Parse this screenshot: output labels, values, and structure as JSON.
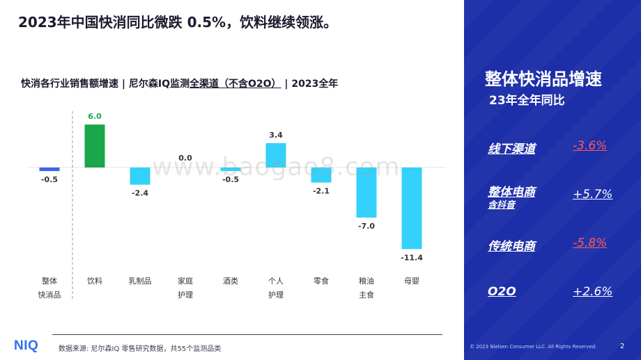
{
  "headline": "2023年中国快消同比微跌 0.5%，饮料继续领涨。",
  "subtitle": {
    "part1": "快消各行业销售额增速 | 尼尔森IQ监测",
    "part2": "全渠道（不含O2O）",
    "part3": " | 2023全年"
  },
  "watermark": "www.baogao8.com",
  "chart_data": {
    "type": "bar",
    "categories": [
      "整体\n快消品",
      "饮料",
      "乳制品",
      "家庭\n护理",
      "酒类",
      "个人\n护理",
      "零食",
      "粮油\n主食",
      "母婴"
    ],
    "values": [
      -0.5,
      6.0,
      -2.4,
      0.0,
      -0.5,
      3.4,
      -2.1,
      -7.0,
      -11.4
    ],
    "value_labels": [
      "-0.5",
      "6.0",
      "-2.4",
      "0.0",
      "-0.5",
      "3.4",
      "-2.1",
      "-7.0",
      "-11.4"
    ],
    "colors": [
      "#3d63e8",
      "#1aa64b",
      "#33d1fb",
      "#33d1fb",
      "#33d1fb",
      "#33d1fb",
      "#33d1fb",
      "#33d1fb",
      "#33d1fb"
    ],
    "highlight_label_color": "#1aa64b",
    "label_color": "#333333",
    "title": "",
    "xlabel": "",
    "ylabel": "",
    "ylim": [
      -12,
      7
    ],
    "grid": false
  },
  "footer": {
    "logo": "NIQ",
    "source": "数据来源: 尼尔森IQ 零售研究数据，共55个监测品类"
  },
  "panel": {
    "title": "整体快消品增速",
    "subtitle": "23年全年同比",
    "metrics": [
      {
        "label": "线下渠道",
        "note": "",
        "value": "-3.6%",
        "color": "#ff5a5a"
      },
      {
        "label": "整体电商",
        "note": "含抖音",
        "value": "+5.7%",
        "color": "#ffffff"
      },
      {
        "label": "传统电商",
        "note": "",
        "value": "-5.8%",
        "color": "#ff5a5a"
      },
      {
        "label": "O2O",
        "note": "",
        "value": "+2.6%",
        "color": "#ffffff"
      }
    ],
    "copyright": "© 2023 Nielsen Consumer LLC. All Rights Reserved.",
    "page_number": "2"
  }
}
